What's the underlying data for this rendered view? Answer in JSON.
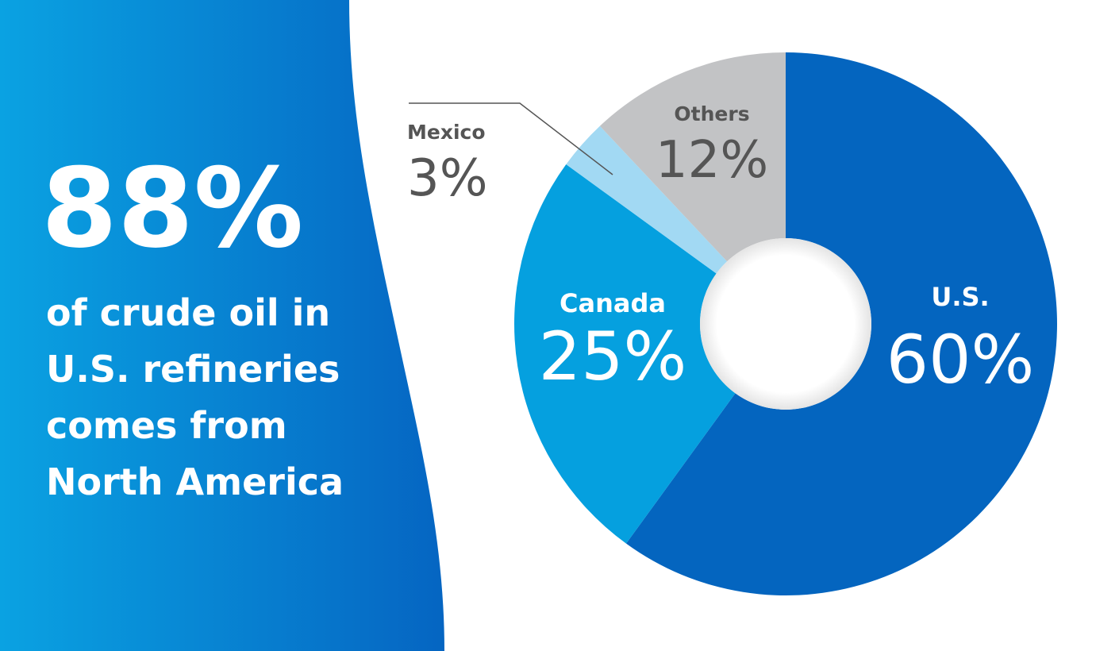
{
  "chart_data": {
    "type": "pie",
    "headline": "88%",
    "text_lines": [
      "of crude oil in",
      "U.S. refineries",
      "comes from",
      "North America"
    ],
    "categories": [
      "U.S.",
      "Canada",
      "Mexico",
      "Others"
    ],
    "values": [
      60,
      25,
      3,
      12
    ],
    "value_labels": [
      "60%",
      "25%",
      "3%",
      "12%"
    ],
    "colors": [
      "#0465bf",
      "#05a0df",
      "#a2d9f3",
      "#c2c3c5"
    ],
    "donut": true
  }
}
